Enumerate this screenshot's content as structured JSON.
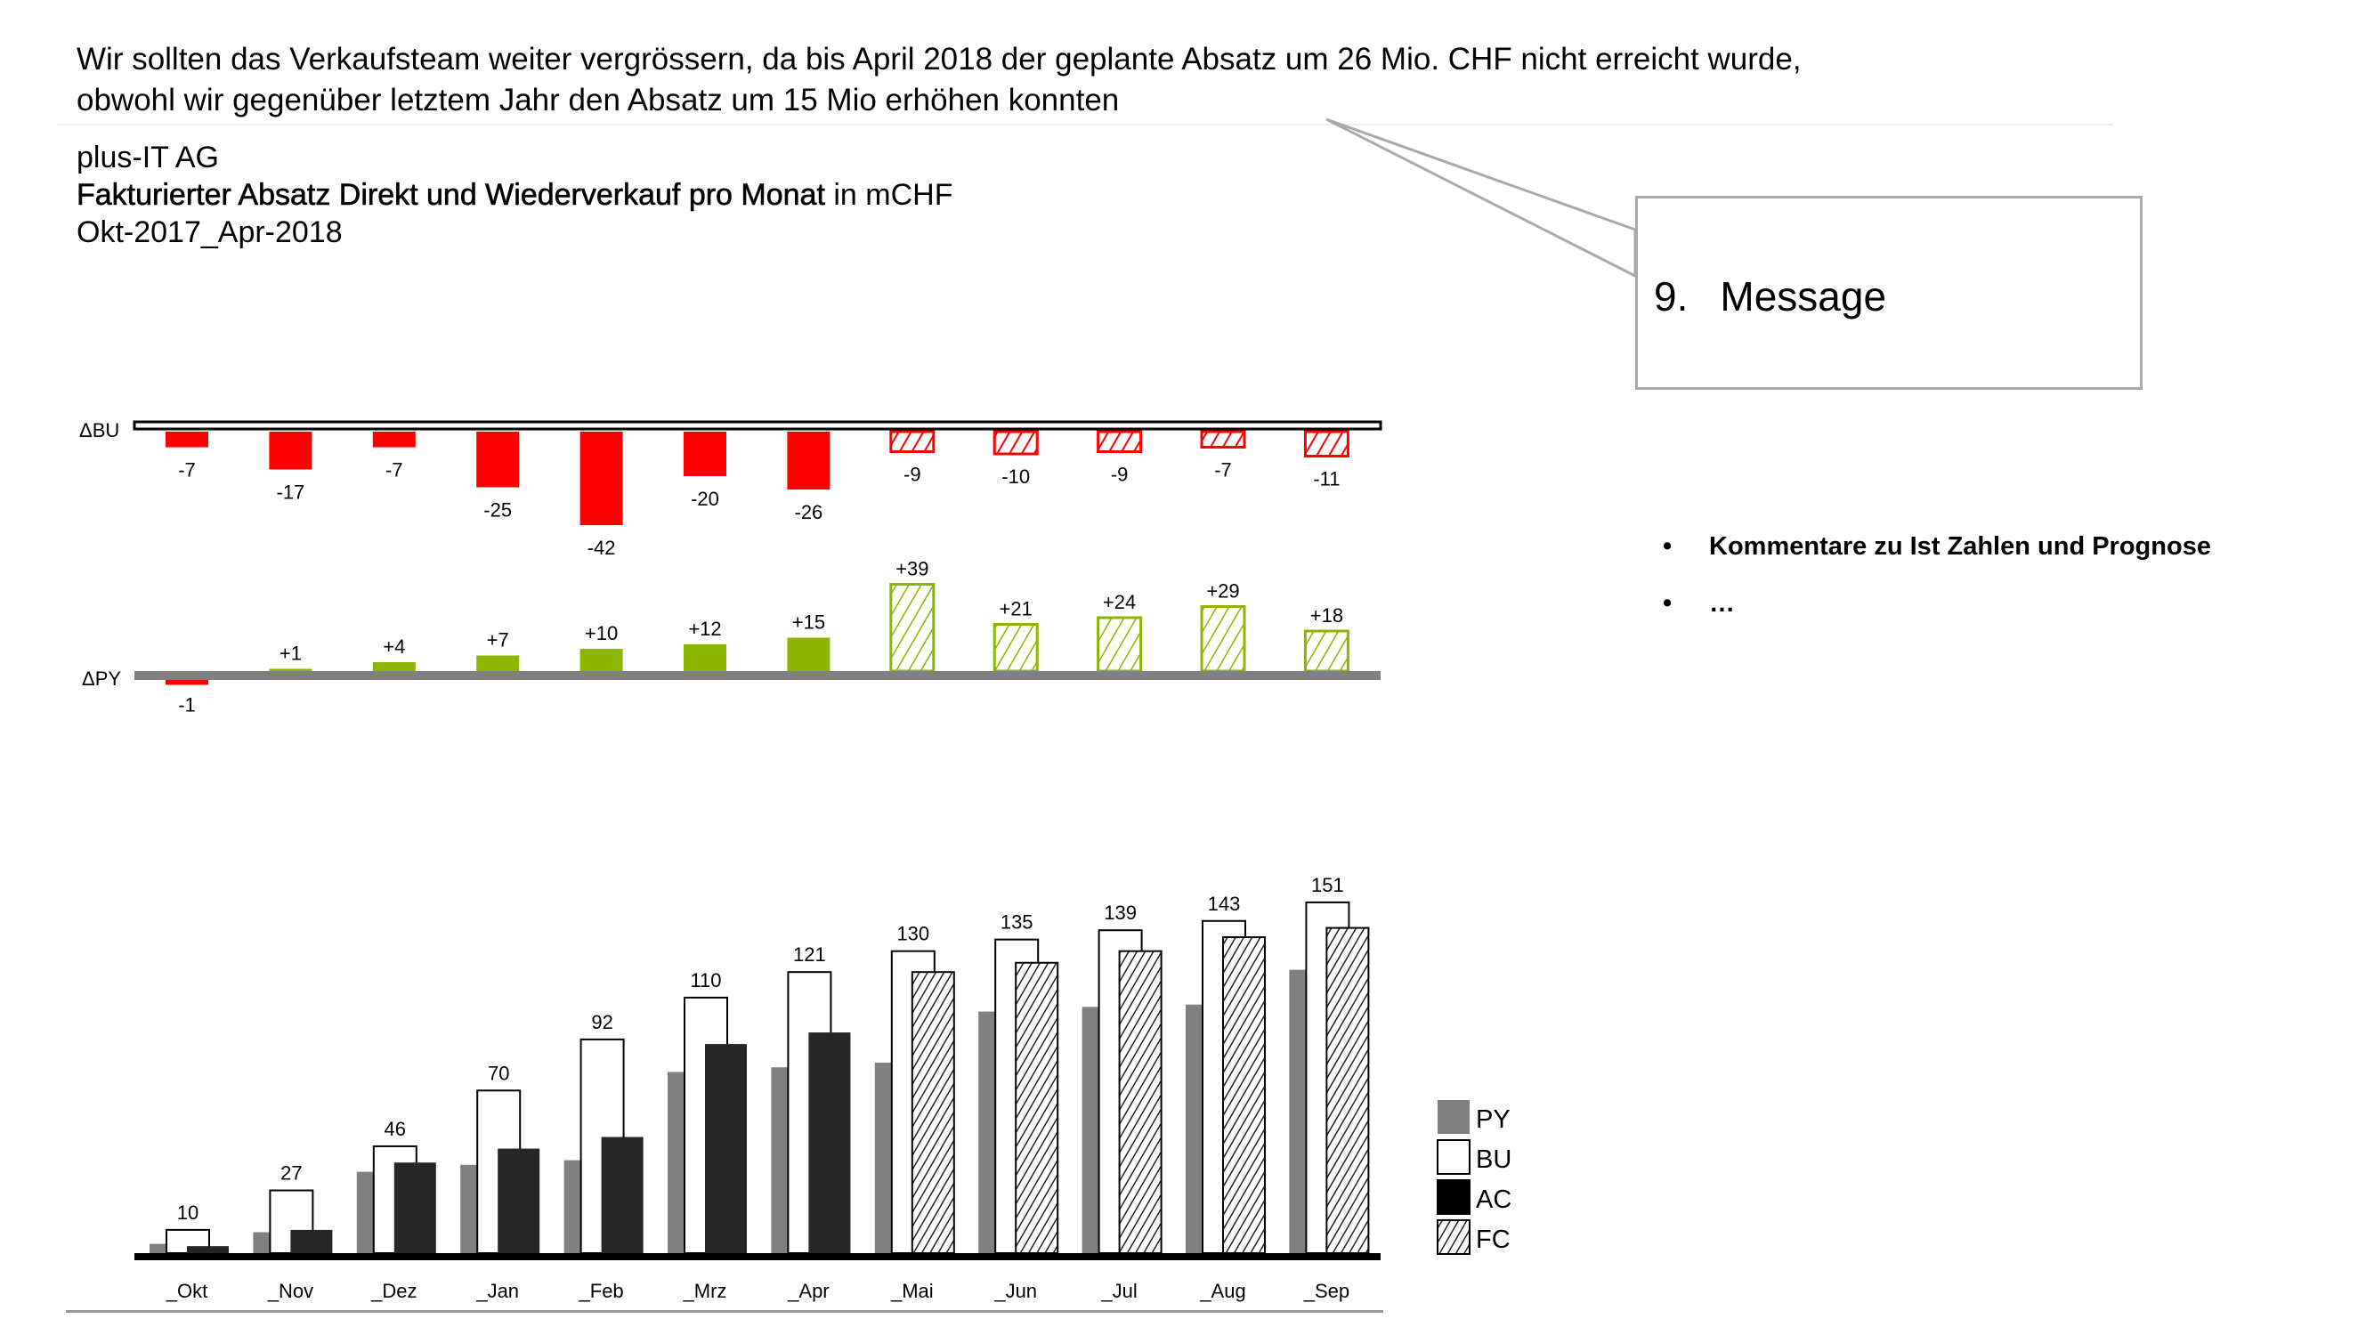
{
  "headline": {
    "line1": "Wir sollten das Verkaufsteam weiter vergrössern, da bis April 2018 der geplante Absatz um 26 Mio. CHF nicht erreicht wurde,",
    "line2": "obwohl wir gegenüber letztem Jahr den Absatz um 15 Mio erhöhen konnten"
  },
  "company": "plus-IT AG",
  "title_bold": "Fakturierter Absatz Direkt und Wiederverkauf pro Monat",
  "title_unit": " in mCHF",
  "period": "Okt-2017_Apr-2018",
  "callout": {
    "number": "9.",
    "text": "Message"
  },
  "comments": [
    {
      "bullet": "•",
      "text": "Kommentare zu Ist Zahlen und Prognose"
    },
    {
      "bullet": "•",
      "text": "…"
    }
  ],
  "colors": {
    "neg": "#ff0000",
    "pos": "#8db600",
    "py": "#808080",
    "ac": "#262626"
  },
  "chart_data": {
    "type": "bar",
    "categories": [
      "_Okt",
      "_Nov",
      "_Dez",
      "_Jan",
      "_Feb",
      "_Mrz",
      "_Apr",
      "_Mai",
      "_Jun",
      "_Jul",
      "_Aug",
      "_Sep"
    ],
    "forecast_from_index": 7,
    "legend": [
      "PY",
      "BU",
      "AC",
      "FC"
    ],
    "legend_position": "right-bottom",
    "delta_bu": {
      "label": "ΔBU",
      "values": [
        -7,
        -17,
        -7,
        -25,
        -42,
        -20,
        -26,
        -9,
        -10,
        -9,
        -7,
        -11
      ],
      "labels": [
        "-7",
        "-17",
        "-7",
        "-25",
        "-42",
        "-20",
        "-26",
        "-9",
        "-10",
        "-9",
        "-7",
        "-11"
      ]
    },
    "delta_py": {
      "label": "ΔPY",
      "values": [
        -1,
        1,
        4,
        7,
        10,
        12,
        15,
        39,
        21,
        24,
        29,
        18
      ],
      "labels": [
        "-1",
        "+1",
        "+4",
        "+7",
        "+10",
        "+12",
        "+15",
        "+39",
        "+21",
        "+24",
        "+29",
        "+18"
      ]
    },
    "series": [
      {
        "name": "PY",
        "values": [
          4,
          9,
          35,
          38,
          40,
          78,
          80,
          82,
          104,
          106,
          107,
          122
        ]
      },
      {
        "name": "BU",
        "values": [
          10,
          27,
          46,
          70,
          92,
          110,
          121,
          130,
          135,
          139,
          143,
          151
        ],
        "labels": [
          "10",
          "27",
          "46",
          "70",
          "92",
          "110",
          "121",
          "130",
          "135",
          "139",
          "143",
          "151"
        ]
      },
      {
        "name": "AC/FC",
        "values": [
          3,
          10,
          39,
          45,
          50,
          90,
          95,
          121,
          125,
          130,
          136,
          140
        ]
      }
    ]
  }
}
